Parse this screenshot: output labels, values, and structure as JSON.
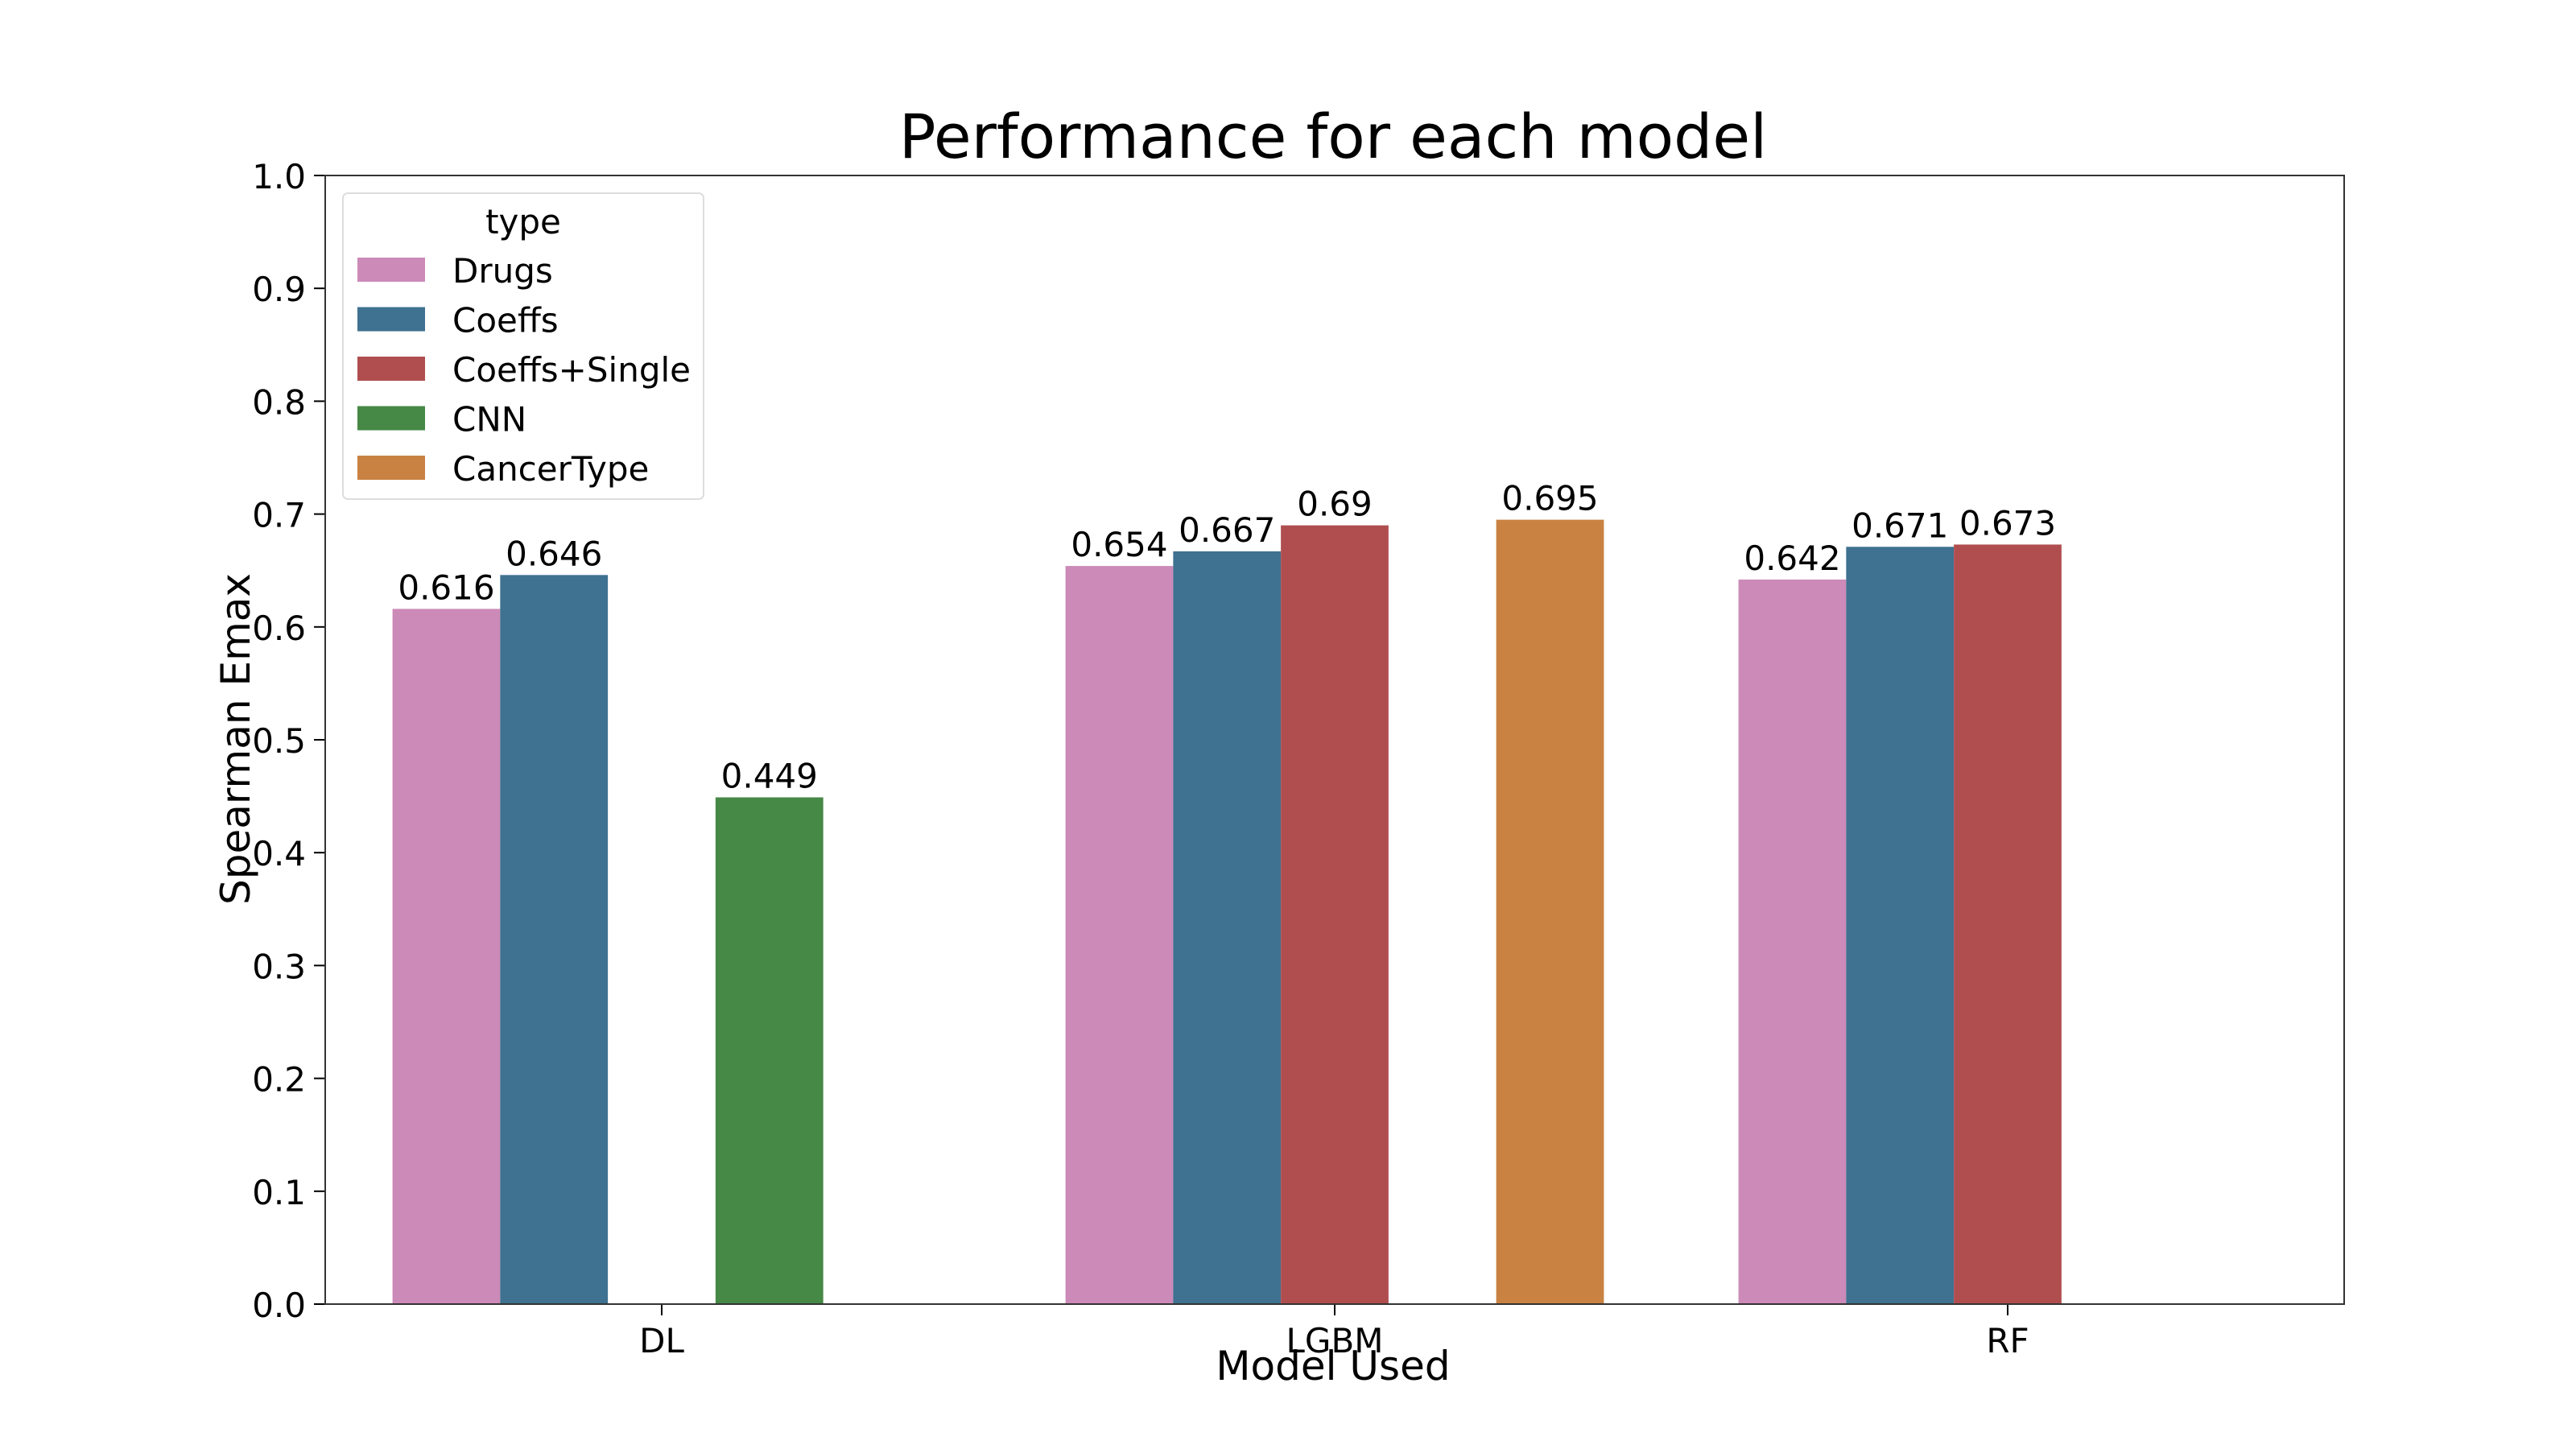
{
  "chart_data": {
    "type": "bar",
    "title": "Performance for each model",
    "xlabel": "Model Used",
    "ylabel": "Spearman Emax",
    "ylim": [
      0,
      1.0
    ],
    "yticks": [
      "0.0",
      "0.1",
      "0.2",
      "0.3",
      "0.4",
      "0.5",
      "0.6",
      "0.7",
      "0.8",
      "0.9",
      "1.0"
    ],
    "categories": [
      "DL",
      "LGBM",
      "RF"
    ],
    "legend": {
      "title": "type",
      "placement": "upper-left"
    },
    "series": [
      {
        "name": "Drugs",
        "color": "#cc8ab8",
        "values": [
          0.616,
          0.654,
          0.642
        ],
        "labels": [
          "0.616",
          "0.654",
          "0.642"
        ]
      },
      {
        "name": "Coeffs",
        "color": "#3f7190",
        "values": [
          0.646,
          0.667,
          0.671
        ],
        "labels": [
          "0.646",
          "0.667",
          "0.671"
        ]
      },
      {
        "name": "Coeffs+Single",
        "color": "#b04e4f",
        "values": [
          null,
          0.69,
          0.673
        ],
        "labels": [
          null,
          "0.69",
          "0.673"
        ]
      },
      {
        "name": "CNN",
        "color": "#468845",
        "values": [
          0.449,
          null,
          null
        ],
        "labels": [
          "0.449",
          null,
          null
        ]
      },
      {
        "name": "CancerType",
        "color": "#c98242",
        "values": [
          null,
          0.695,
          null
        ],
        "labels": [
          null,
          "0.695",
          null
        ]
      }
    ],
    "grid": false
  }
}
